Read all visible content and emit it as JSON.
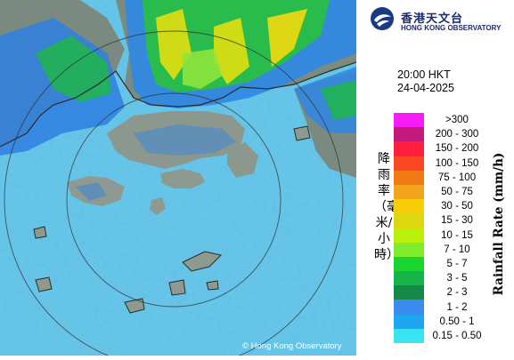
{
  "header": {
    "org_name_cn": "香港天文台",
    "org_name_en": "HONG KONG OBSERVATORY"
  },
  "timestamp": {
    "time": "20:00 HKT",
    "date": "24-04-2025"
  },
  "legend": {
    "title_cn": "降雨率（毫米/小時）",
    "title_en": "Rainfall Rate (mm/h)",
    "items": [
      {
        "label": ">300",
        "color": "#f61cf6"
      },
      {
        "label": "200 - 300",
        "color": "#c3197c"
      },
      {
        "label": "150 - 200",
        "color": "#ff1e3c"
      },
      {
        "label": "100 - 150",
        "color": "#fb4824"
      },
      {
        "label": "75 - 100",
        "color": "#f17a14"
      },
      {
        "label": "50 - 75",
        "color": "#f3a41e"
      },
      {
        "label": "30 - 50",
        "color": "#f6cd08"
      },
      {
        "label": "15 - 30",
        "color": "#dcd70e"
      },
      {
        "label": "10 - 15",
        "color": "#b9f10c"
      },
      {
        "label": "7 - 10",
        "color": "#80ec2b"
      },
      {
        "label": "5 - 7",
        "color": "#19d52f"
      },
      {
        "label": "3 - 5",
        "color": "#16b44a"
      },
      {
        "label": "2 - 3",
        "color": "#148a46"
      },
      {
        "label": "1 - 2",
        "color": "#3c8bf0"
      },
      {
        "label": "0.50 - 1",
        "color": "#1ea6f0"
      },
      {
        "label": "0.15 - 0.50",
        "color": "#39e3f2"
      }
    ]
  },
  "map": {
    "copyright": "© Hong Kong Observatory",
    "sea_color": "#66c7e8",
    "land_color": "#8d998f"
  }
}
